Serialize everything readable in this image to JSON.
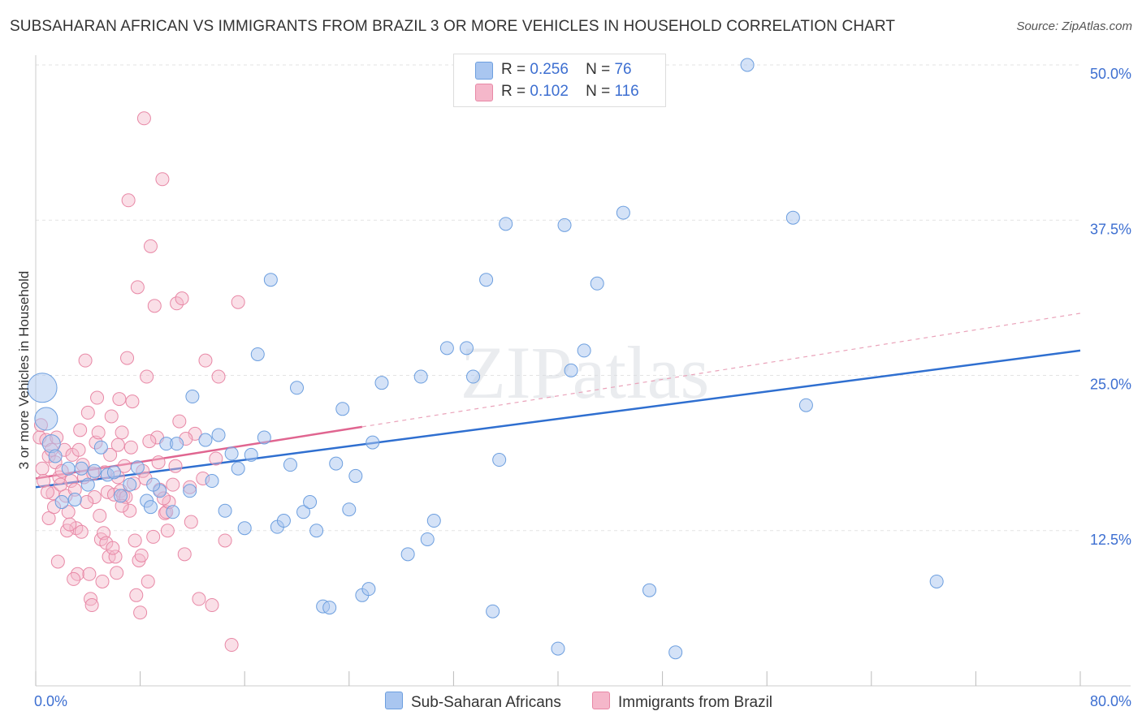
{
  "title": "SUBSAHARAN AFRICAN VS IMMIGRANTS FROM BRAZIL 3 OR MORE VEHICLES IN HOUSEHOLD CORRELATION CHART",
  "source": "Source: ZipAtlas.com",
  "watermark": "ZIPatlas",
  "legend": {
    "series1": {
      "r_label": "R =",
      "r_value": "0.256",
      "n_label": "N =",
      "n_value": "76"
    },
    "series2": {
      "r_label": "R =",
      "r_value": "0.102",
      "n_label": "N =",
      "n_value": "116"
    }
  },
  "colors": {
    "blue_fill": "#a9c6f0",
    "blue_stroke": "#6d9fdf",
    "blue_line": "#2f6fd0",
    "pink_fill": "#f5b7ca",
    "pink_stroke": "#e888a6",
    "pink_line": "#e06590",
    "axis_label": "#3d6fd1"
  },
  "chart_data": {
    "type": "scatter",
    "title": "SUBSAHARAN AFRICAN VS IMMIGRANTS FROM BRAZIL 3 OR MORE VEHICLES IN HOUSEHOLD CORRELATION CHART",
    "xlabel": "",
    "ylabel": "3 or more Vehicles in Household",
    "xlim": [
      0,
      80
    ],
    "ylim": [
      0,
      50
    ],
    "x_tick_labels": [
      "0.0%",
      "80.0%"
    ],
    "y_ticks": [
      12.5,
      25,
      37.5,
      50
    ],
    "y_tick_labels": [
      "12.5%",
      "25.0%",
      "37.5%",
      "50.0%"
    ],
    "grid": true,
    "legend_position": "top-center",
    "series": [
      {
        "name": "Sub-Saharan Africans",
        "color": "#a9c6f0",
        "trend": {
          "x0": 0,
          "y0": 16.0,
          "x1": 80,
          "y1": 27.0,
          "dashed_from": null
        },
        "points": [
          [
            0.5,
            24.0
          ],
          [
            0.8,
            21.5
          ],
          [
            1.2,
            19.5
          ],
          [
            2.5,
            17.5
          ],
          [
            4.5,
            17.3
          ],
          [
            5.0,
            19.2
          ],
          [
            5.5,
            17.0
          ],
          [
            6.5,
            15.3
          ],
          [
            7.2,
            16.2
          ],
          [
            7.8,
            17.6
          ],
          [
            4.0,
            16.2
          ],
          [
            3.0,
            15.0
          ],
          [
            2.0,
            14.8
          ],
          [
            8.5,
            14.9
          ],
          [
            8.8,
            14.4
          ],
          [
            9.5,
            15.7
          ],
          [
            10.0,
            19.5
          ],
          [
            10.5,
            14.0
          ],
          [
            10.8,
            19.5
          ],
          [
            11.8,
            15.7
          ],
          [
            12.0,
            23.3
          ],
          [
            13.0,
            19.8
          ],
          [
            13.5,
            16.5
          ],
          [
            14.0,
            20.2
          ],
          [
            14.5,
            14.1
          ],
          [
            15.0,
            18.7
          ],
          [
            15.5,
            17.5
          ],
          [
            16.0,
            12.7
          ],
          [
            16.5,
            18.6
          ],
          [
            17.0,
            26.7
          ],
          [
            17.5,
            20.0
          ],
          [
            18.0,
            32.7
          ],
          [
            18.5,
            12.8
          ],
          [
            19.0,
            13.3
          ],
          [
            19.5,
            17.8
          ],
          [
            20.0,
            24.0
          ],
          [
            20.5,
            14.0
          ],
          [
            21.0,
            14.8
          ],
          [
            21.5,
            12.5
          ],
          [
            22.0,
            6.4
          ],
          [
            22.5,
            6.3
          ],
          [
            23.0,
            17.9
          ],
          [
            23.5,
            22.3
          ],
          [
            24.0,
            14.2
          ],
          [
            24.5,
            16.9
          ],
          [
            25.0,
            7.3
          ],
          [
            25.5,
            7.8
          ],
          [
            25.8,
            19.6
          ],
          [
            26.5,
            24.4
          ],
          [
            28.5,
            10.6
          ],
          [
            29.5,
            24.9
          ],
          [
            30.0,
            11.8
          ],
          [
            30.5,
            13.3
          ],
          [
            31.5,
            27.2
          ],
          [
            33.0,
            27.2
          ],
          [
            33.5,
            24.9
          ],
          [
            34.5,
            32.7
          ],
          [
            35.0,
            6.0
          ],
          [
            35.5,
            18.2
          ],
          [
            36.0,
            37.2
          ],
          [
            40.5,
            37.1
          ],
          [
            40.0,
            3.0
          ],
          [
            41.0,
            25.4
          ],
          [
            42.0,
            27.0
          ],
          [
            43.0,
            32.4
          ],
          [
            45.0,
            38.1
          ],
          [
            47.0,
            7.7
          ],
          [
            49.0,
            2.7
          ],
          [
            54.5,
            50.0
          ],
          [
            58.0,
            37.7
          ],
          [
            59.0,
            22.6
          ],
          [
            69.0,
            8.4
          ],
          [
            1.5,
            18.5
          ],
          [
            3.5,
            17.5
          ],
          [
            6.0,
            17.2
          ],
          [
            9.0,
            16.2
          ]
        ]
      },
      {
        "name": "Immigrants from Brazil",
        "color": "#f5b7ca",
        "trend": {
          "x0": 0,
          "y0": 16.7,
          "x1": 80,
          "y1": 30.0,
          "solid_until": 25
        },
        "points": [
          [
            0.3,
            20.0
          ],
          [
            0.5,
            17.5
          ],
          [
            0.6,
            16.5
          ],
          [
            0.8,
            19.8
          ],
          [
            1.0,
            18.5
          ],
          [
            1.2,
            19.0
          ],
          [
            1.3,
            15.5
          ],
          [
            1.5,
            18.0
          ],
          [
            1.6,
            20.0
          ],
          [
            1.8,
            16.8
          ],
          [
            2.0,
            17.3
          ],
          [
            2.2,
            19.0
          ],
          [
            2.3,
            15.3
          ],
          [
            2.5,
            14.0
          ],
          [
            2.7,
            16.5
          ],
          [
            2.8,
            18.6
          ],
          [
            3.0,
            15.8
          ],
          [
            3.1,
            12.7
          ],
          [
            3.2,
            9.0
          ],
          [
            3.3,
            19.0
          ],
          [
            3.5,
            12.4
          ],
          [
            3.6,
            17.8
          ],
          [
            3.7,
            16.8
          ],
          [
            3.8,
            26.2
          ],
          [
            4.0,
            22.0
          ],
          [
            4.1,
            9.0
          ],
          [
            4.2,
            7.0
          ],
          [
            4.4,
            17.1
          ],
          [
            4.5,
            15.2
          ],
          [
            4.6,
            19.6
          ],
          [
            4.7,
            23.2
          ],
          [
            4.8,
            20.4
          ],
          [
            5.0,
            11.8
          ],
          [
            5.1,
            8.4
          ],
          [
            5.2,
            12.3
          ],
          [
            5.3,
            17.2
          ],
          [
            5.5,
            15.6
          ],
          [
            5.6,
            10.4
          ],
          [
            5.7,
            18.6
          ],
          [
            5.8,
            21.7
          ],
          [
            6.0,
            15.4
          ],
          [
            6.1,
            10.4
          ],
          [
            6.2,
            9.1
          ],
          [
            6.3,
            16.8
          ],
          [
            6.4,
            23.1
          ],
          [
            6.5,
            15.7
          ],
          [
            6.6,
            20.4
          ],
          [
            6.7,
            15.3
          ],
          [
            6.8,
            17.7
          ],
          [
            6.9,
            15.2
          ],
          [
            7.0,
            26.4
          ],
          [
            7.1,
            39.1
          ],
          [
            7.2,
            14.1
          ],
          [
            7.4,
            22.9
          ],
          [
            7.5,
            16.3
          ],
          [
            7.7,
            7.3
          ],
          [
            7.8,
            32.1
          ],
          [
            7.9,
            10.1
          ],
          [
            8.0,
            5.9
          ],
          [
            8.2,
            17.3
          ],
          [
            8.3,
            45.7
          ],
          [
            8.5,
            24.9
          ],
          [
            8.6,
            8.4
          ],
          [
            8.8,
            35.4
          ],
          [
            9.0,
            12.0
          ],
          [
            9.1,
            30.6
          ],
          [
            9.3,
            20.0
          ],
          [
            9.5,
            15.8
          ],
          [
            9.7,
            40.8
          ],
          [
            9.9,
            13.9
          ],
          [
            10.0,
            14.0
          ],
          [
            10.2,
            14.8
          ],
          [
            10.5,
            16.2
          ],
          [
            10.8,
            30.8
          ],
          [
            11.0,
            21.3
          ],
          [
            11.2,
            31.2
          ],
          [
            11.4,
            10.6
          ],
          [
            11.8,
            16.0
          ],
          [
            12.2,
            20.3
          ],
          [
            12.5,
            7.0
          ],
          [
            13.0,
            26.2
          ],
          [
            13.5,
            6.5
          ],
          [
            14.0,
            24.9
          ],
          [
            14.5,
            11.7
          ],
          [
            15.0,
            3.3
          ],
          [
            15.5,
            30.9
          ],
          [
            1.0,
            13.5
          ],
          [
            1.7,
            10.0
          ],
          [
            2.4,
            12.5
          ],
          [
            2.9,
            8.6
          ],
          [
            3.4,
            20.6
          ],
          [
            4.3,
            6.5
          ],
          [
            5.4,
            11.5
          ],
          [
            6.6,
            14.5
          ],
          [
            7.3,
            19.2
          ],
          [
            8.1,
            10.5
          ],
          [
            8.7,
            19.7
          ],
          [
            9.4,
            18.0
          ],
          [
            10.1,
            12.5
          ],
          [
            11.5,
            19.9
          ],
          [
            12.8,
            16.7
          ],
          [
            13.8,
            18.3
          ],
          [
            0.4,
            21.0
          ],
          [
            0.9,
            15.6
          ],
          [
            1.4,
            14.4
          ],
          [
            1.9,
            16.2
          ],
          [
            2.6,
            13.0
          ],
          [
            3.9,
            14.8
          ],
          [
            4.9,
            13.7
          ],
          [
            5.9,
            11.1
          ],
          [
            6.3,
            19.4
          ],
          [
            7.6,
            11.7
          ],
          [
            8.4,
            16.7
          ],
          [
            9.8,
            15.1
          ],
          [
            10.7,
            17.7
          ],
          [
            11.9,
            13.2
          ]
        ]
      }
    ]
  },
  "bottom_legend": {
    "series1": "Sub-Saharan Africans",
    "series2": "Immigrants from Brazil"
  }
}
